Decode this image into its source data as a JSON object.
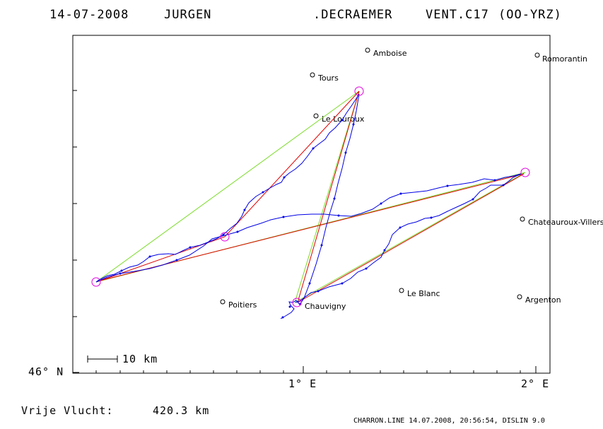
{
  "header": {
    "date": "14-07-2008",
    "pilot_first": "JURGEN",
    "pilot_last": ".DECRAEMER",
    "glider": "VENT.C17",
    "registration": "(OO-YRZ)"
  },
  "cities": [
    {
      "name": "Amboise"
    },
    {
      "name": "Romorantin"
    },
    {
      "name": "Tours"
    },
    {
      "name": "Le Louroux"
    },
    {
      "name": "Chateauroux-Villers"
    },
    {
      "name": "Le Blanc"
    },
    {
      "name": "Poitiers"
    },
    {
      "name": "Chauvigny"
    },
    {
      "name": "Argenton"
    }
  ],
  "axes": {
    "y_label": "46° N",
    "x_label_1": "1° E",
    "x_label_2": "2° E"
  },
  "scale": {
    "label": "10 km"
  },
  "footer": {
    "free_flight_label": "Vrije Vlucht:",
    "free_flight_value": "420.3 km",
    "credit": "CHARRON.LINE 14.07.2008, 20:56:54, DISLIN 9.0"
  },
  "colors": {
    "track": "#0000e6",
    "task_line": "#7cdc2a",
    "optimized_line": "#e00000",
    "turnpoint": "#e000e0"
  }
}
